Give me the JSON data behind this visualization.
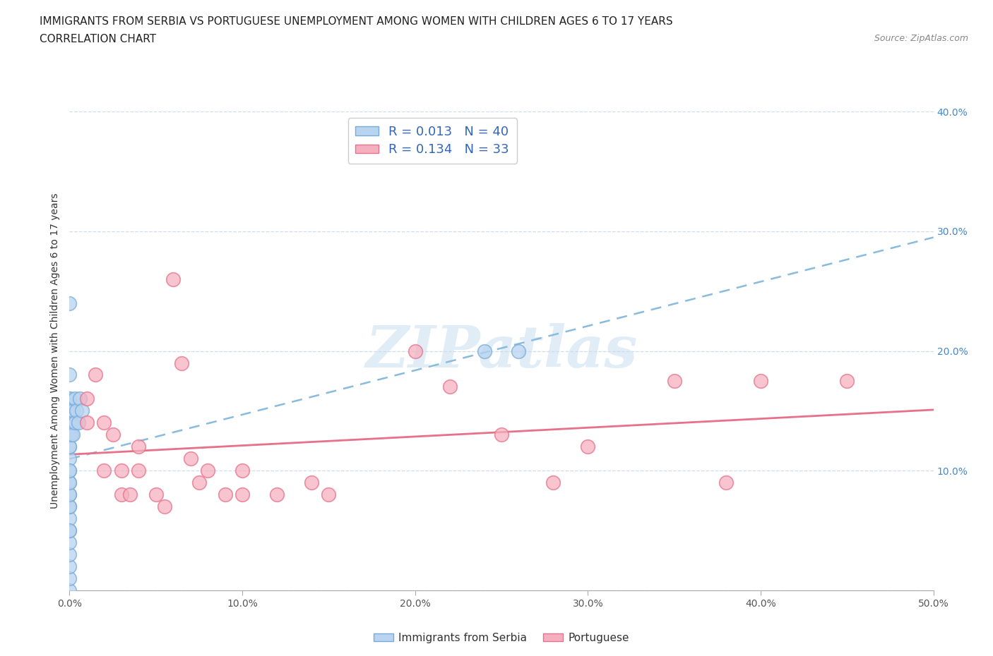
{
  "title": "IMMIGRANTS FROM SERBIA VS PORTUGUESE UNEMPLOYMENT AMONG WOMEN WITH CHILDREN AGES 6 TO 17 YEARS",
  "subtitle": "CORRELATION CHART",
  "source": "Source: ZipAtlas.com",
  "ylabel": "Unemployment Among Women with Children Ages 6 to 17 years",
  "xlim": [
    0.0,
    0.5
  ],
  "ylim": [
    0.0,
    0.4
  ],
  "xticks": [
    0.0,
    0.1,
    0.2,
    0.3,
    0.4,
    0.5
  ],
  "yticks": [
    0.0,
    0.1,
    0.2,
    0.3,
    0.4
  ],
  "xtick_labels": [
    "0.0%",
    "10.0%",
    "20.0%",
    "30.0%",
    "40.0%",
    "50.0%"
  ],
  "ytick_labels_right": [
    "",
    "10.0%",
    "20.0%",
    "30.0%",
    "40.0%"
  ],
  "serbia_R": 0.013,
  "serbia_N": 40,
  "portuguese_R": 0.134,
  "portuguese_N": 33,
  "serbia_color": "#b8d4f0",
  "portuguese_color": "#f5b0c0",
  "serbia_edge_color": "#7aaad8",
  "portuguese_edge_color": "#e8708a",
  "serbia_line_color": "#88bbdd",
  "portuguese_line_color": "#e8708a",
  "watermark_text": "ZIPatlas",
  "serbia_x": [
    0.0,
    0.0,
    0.0,
    0.0,
    0.0,
    0.0,
    0.0,
    0.0,
    0.0,
    0.0,
    0.0,
    0.0,
    0.0,
    0.0,
    0.0,
    0.0,
    0.0,
    0.0,
    0.0,
    0.0,
    0.0,
    0.0,
    0.0,
    0.0,
    0.0,
    0.0,
    0.0,
    0.0,
    0.001,
    0.001,
    0.002,
    0.002,
    0.003,
    0.003,
    0.004,
    0.005,
    0.006,
    0.007,
    0.24,
    0.26
  ],
  "serbia_y": [
    0.0,
    0.01,
    0.02,
    0.03,
    0.04,
    0.05,
    0.06,
    0.07,
    0.08,
    0.09,
    0.1,
    0.11,
    0.12,
    0.13,
    0.14,
    0.15,
    0.16,
    0.24,
    0.05,
    0.07,
    0.08,
    0.09,
    0.1,
    0.12,
    0.14,
    0.15,
    0.16,
    0.18,
    0.13,
    0.14,
    0.13,
    0.15,
    0.14,
    0.16,
    0.15,
    0.14,
    0.16,
    0.15,
    0.2,
    0.2
  ],
  "portuguese_x": [
    0.01,
    0.01,
    0.015,
    0.02,
    0.02,
    0.025,
    0.03,
    0.03,
    0.035,
    0.04,
    0.04,
    0.05,
    0.055,
    0.06,
    0.065,
    0.07,
    0.075,
    0.08,
    0.09,
    0.1,
    0.1,
    0.12,
    0.14,
    0.15,
    0.2,
    0.22,
    0.25,
    0.28,
    0.3,
    0.35,
    0.38,
    0.4,
    0.45
  ],
  "portuguese_y": [
    0.14,
    0.16,
    0.18,
    0.1,
    0.14,
    0.13,
    0.08,
    0.1,
    0.08,
    0.1,
    0.12,
    0.08,
    0.07,
    0.26,
    0.19,
    0.11,
    0.09,
    0.1,
    0.08,
    0.1,
    0.08,
    0.08,
    0.09,
    0.08,
    0.2,
    0.17,
    0.13,
    0.09,
    0.12,
    0.175,
    0.09,
    0.175,
    0.175
  ]
}
